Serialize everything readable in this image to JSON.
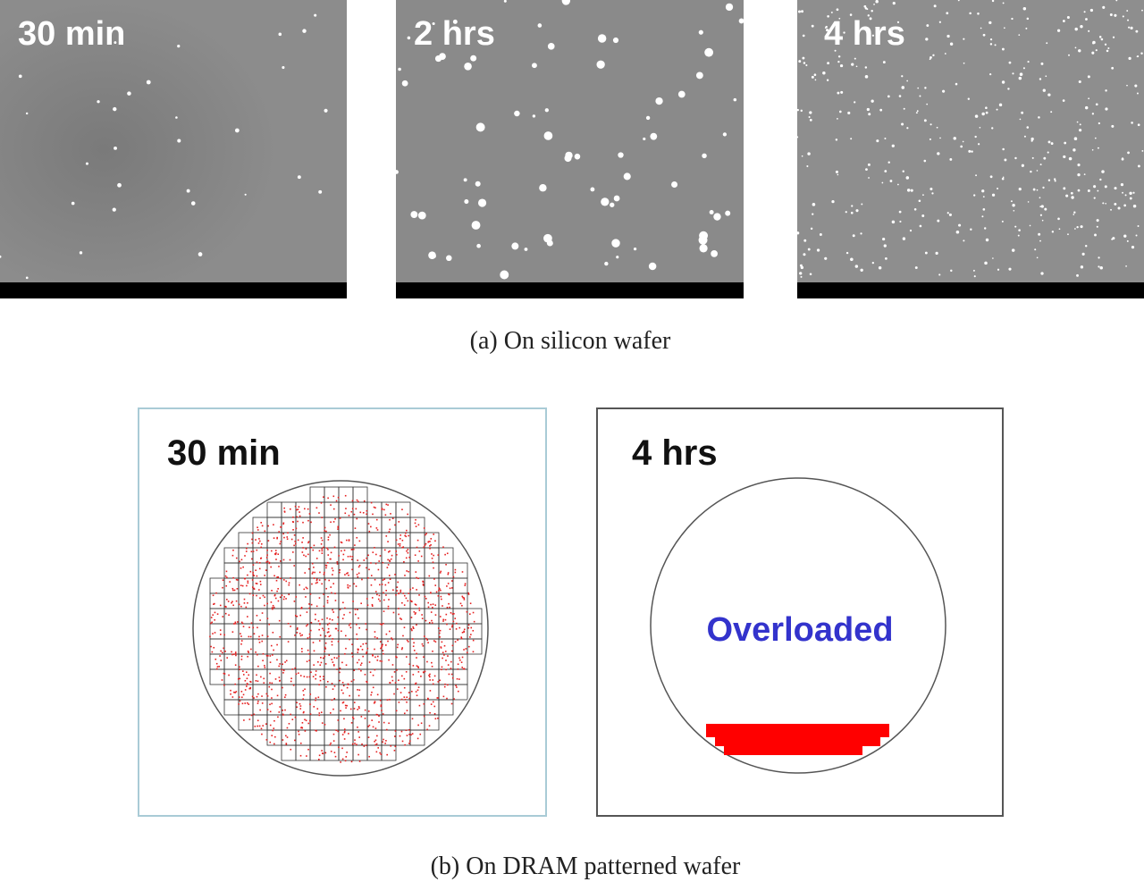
{
  "panels_a": [
    {
      "label": "30 min"
    },
    {
      "label": "2 hrs"
    },
    {
      "label": "4 hrs"
    }
  ],
  "caption_a": "(a) On silicon wafer",
  "panels_b": [
    {
      "label": "30 min"
    },
    {
      "label": "4 hrs",
      "status": "Overloaded"
    }
  ],
  "caption_b": "(b) On DRAM patterned wafer"
}
